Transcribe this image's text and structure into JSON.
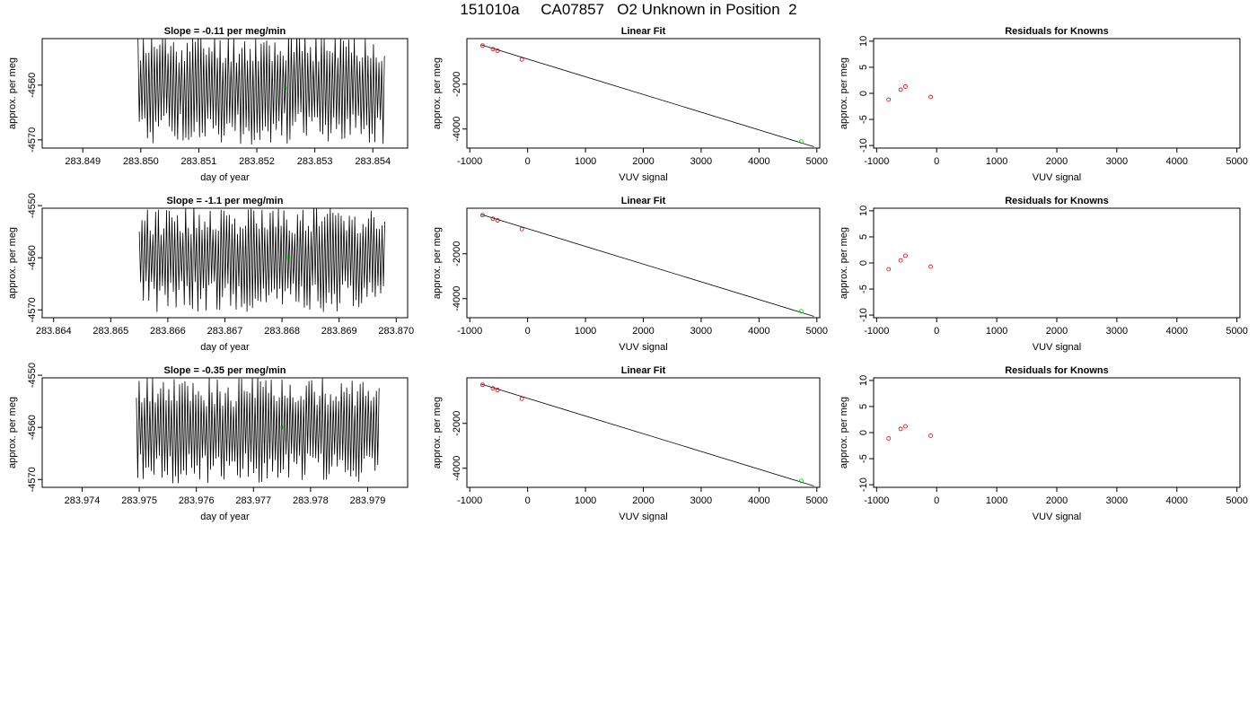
{
  "page_title": "151010a     CA07857   O2 Unknown in Position  2",
  "colors": {
    "axis": "#000000",
    "known": "#cc0000",
    "unknown": "#00cc00"
  },
  "chart_data": [
    {
      "type": "line",
      "title": "Slope =  -0.11  per meg/min",
      "xlabel": "day of year",
      "ylabel": "approx. per meg",
      "xlim": [
        283.8483,
        283.8546
      ],
      "ylim": [
        -4571.5,
        -4551.5
      ],
      "x_ticks": [
        283.849,
        283.85,
        283.851,
        283.852,
        283.853,
        283.854
      ],
      "x_tick_labels": [
        "283.849",
        "283.850",
        "283.851",
        "283.852",
        "283.853",
        "283.854"
      ],
      "y_ticks": [
        -4560,
        -4570
      ],
      "y_tick_labels": [
        "-4560",
        "-4570"
      ],
      "signal": {
        "x_start": 283.84995,
        "x_end": 283.8542,
        "cycles": 90,
        "y_center": -4560.5,
        "y_amplitude": 8,
        "seed": 11
      },
      "marker": {
        "x": 283.8525,
        "y": -4560.5
      }
    },
    {
      "type": "scatter",
      "title": "Linear Fit",
      "xlabel": "VUV signal",
      "ylabel": "approx. per meg",
      "xlim": [
        -1050,
        5050
      ],
      "ylim": [
        -4850,
        30
      ],
      "x_ticks": [
        -1000,
        0,
        1000,
        2000,
        3000,
        4000,
        5000
      ],
      "x_tick_labels": [
        "-1000",
        "0",
        "1000",
        "2000",
        "3000",
        "4000",
        "5000"
      ],
      "y_ticks": [
        -2000,
        -4000
      ],
      "y_tick_labels": [
        "-2000",
        "-4000"
      ],
      "known_points": [
        {
          "x": -780,
          "y": -280
        },
        {
          "x": -600,
          "y": -440
        },
        {
          "x": -520,
          "y": -510
        },
        {
          "x": -100,
          "y": -900
        }
      ],
      "unknown_point": {
        "x": 4730,
        "y": -4560
      },
      "fit_line": {
        "x": [
          -800,
          4950
        ],
        "y": [
          -250,
          -4790
        ]
      }
    },
    {
      "type": "scatter",
      "title": "Residuals for Knowns",
      "xlabel": "VUV signal",
      "ylabel": "approx. per meg",
      "xlim": [
        -1050,
        5050
      ],
      "ylim": [
        -10.5,
        10.5
      ],
      "x_ticks": [
        -1000,
        0,
        1000,
        2000,
        3000,
        4000,
        5000
      ],
      "x_tick_labels": [
        "-1000",
        "0",
        "1000",
        "2000",
        "3000",
        "4000",
        "5000"
      ],
      "y_ticks": [
        10,
        5,
        0,
        -5,
        -10
      ],
      "y_tick_labels": [
        "10",
        "5",
        "0",
        "-5",
        "-10"
      ],
      "points": [
        {
          "x": -800,
          "y": -1.2
        },
        {
          "x": -600,
          "y": 0.7
        },
        {
          "x": -520,
          "y": 1.3
        },
        {
          "x": -100,
          "y": -0.7
        }
      ]
    },
    {
      "type": "line",
      "title": "Slope =  -1.1  per meg/min",
      "xlabel": "day of year",
      "ylabel": "approx. per meg",
      "xlim": [
        283.8638,
        283.8702
      ],
      "ylim": [
        -4571.5,
        -4550.5
      ],
      "x_ticks": [
        283.864,
        283.865,
        283.866,
        283.867,
        283.868,
        283.869,
        283.87
      ],
      "x_tick_labels": [
        "283.864",
        "283.865",
        "283.866",
        "283.867",
        "283.868",
        "283.869",
        "283.870"
      ],
      "y_ticks": [
        -4550,
        -4560,
        -4570
      ],
      "y_tick_labels": [
        "-4550",
        "-4560",
        "-4570"
      ],
      "signal": {
        "x_start": 283.8655,
        "x_end": 283.8698,
        "cycles": 90,
        "y_center": -4560,
        "y_amplitude": 8,
        "seed": 22
      },
      "marker": {
        "x": 283.8681,
        "y": -4560
      }
    },
    {
      "type": "scatter",
      "title": "Linear Fit",
      "xlabel": "VUV signal",
      "ylabel": "approx. per meg",
      "xlim": [
        -1050,
        5050
      ],
      "ylim": [
        -4850,
        30
      ],
      "x_ticks": [
        -1000,
        0,
        1000,
        2000,
        3000,
        4000,
        5000
      ],
      "x_tick_labels": [
        "-1000",
        "0",
        "1000",
        "2000",
        "3000",
        "4000",
        "5000"
      ],
      "y_ticks": [
        -2000,
        -4000
      ],
      "y_tick_labels": [
        "-2000",
        "-4000"
      ],
      "known_points": [
        {
          "x": -780,
          "y": -280
        },
        {
          "x": -600,
          "y": -440
        },
        {
          "x": -520,
          "y": -510
        },
        {
          "x": -100,
          "y": -900
        }
      ],
      "unknown_point": {
        "x": 4730,
        "y": -4560
      },
      "fit_line": {
        "x": [
          -800,
          4950
        ],
        "y": [
          -250,
          -4790
        ]
      }
    },
    {
      "type": "scatter",
      "title": "Residuals for Knowns",
      "xlabel": "VUV signal",
      "ylabel": "approx. per meg",
      "xlim": [
        -1050,
        5050
      ],
      "ylim": [
        -10.5,
        10.5
      ],
      "x_ticks": [
        -1000,
        0,
        1000,
        2000,
        3000,
        4000,
        5000
      ],
      "x_tick_labels": [
        "-1000",
        "0",
        "1000",
        "2000",
        "3000",
        "4000",
        "5000"
      ],
      "y_ticks": [
        10,
        5,
        0,
        -5,
        -10
      ],
      "y_tick_labels": [
        "10",
        "5",
        "0",
        "-5",
        "-10"
      ],
      "points": [
        {
          "x": -800,
          "y": -1.2
        },
        {
          "x": -600,
          "y": 0.5
        },
        {
          "x": -520,
          "y": 1.4
        },
        {
          "x": -100,
          "y": -0.7
        }
      ]
    },
    {
      "type": "line",
      "title": "Slope =  -0.35  per meg/min",
      "xlabel": "day of year",
      "ylabel": "approx. per meg",
      "xlim": [
        283.9733,
        283.9797
      ],
      "ylim": [
        -4571.5,
        -4550.5
      ],
      "x_ticks": [
        283.974,
        283.975,
        283.976,
        283.977,
        283.978,
        283.979
      ],
      "x_tick_labels": [
        "283.974",
        "283.975",
        "283.976",
        "283.977",
        "283.978",
        "283.979"
      ],
      "y_ticks": [
        -4550,
        -4560,
        -4570
      ],
      "y_tick_labels": [
        "-4550",
        "-4560",
        "-4570"
      ],
      "signal": {
        "x_start": 283.97495,
        "x_end": 283.9792,
        "cycles": 90,
        "y_center": -4560.5,
        "y_amplitude": 8,
        "seed": 33
      },
      "marker": {
        "x": 283.9775,
        "y": -4560
      }
    },
    {
      "type": "scatter",
      "title": "Linear Fit",
      "xlabel": "VUV signal",
      "ylabel": "approx. per meg",
      "xlim": [
        -1050,
        5050
      ],
      "ylim": [
        -4850,
        30
      ],
      "x_ticks": [
        -1000,
        0,
        1000,
        2000,
        3000,
        4000,
        5000
      ],
      "x_tick_labels": [
        "-1000",
        "0",
        "1000",
        "2000",
        "3000",
        "4000",
        "5000"
      ],
      "y_ticks": [
        -2000,
        -4000
      ],
      "y_tick_labels": [
        "-2000",
        "-4000"
      ],
      "known_points": [
        {
          "x": -780,
          "y": -280
        },
        {
          "x": -600,
          "y": -440
        },
        {
          "x": -520,
          "y": -510
        },
        {
          "x": -100,
          "y": -900
        }
      ],
      "unknown_point": {
        "x": 4730,
        "y": -4560
      },
      "fit_line": {
        "x": [
          -800,
          4950
        ],
        "y": [
          -250,
          -4790
        ]
      }
    },
    {
      "type": "scatter",
      "title": "Residuals for Knowns",
      "xlabel": "VUV signal",
      "ylabel": "approx. per meg",
      "xlim": [
        -1050,
        5050
      ],
      "ylim": [
        -10.5,
        10.5
      ],
      "x_ticks": [
        -1000,
        0,
        1000,
        2000,
        3000,
        4000,
        5000
      ],
      "x_tick_labels": [
        "-1000",
        "0",
        "1000",
        "2000",
        "3000",
        "4000",
        "5000"
      ],
      "y_ticks": [
        10,
        5,
        0,
        -5,
        -10
      ],
      "y_tick_labels": [
        "10",
        "5",
        "0",
        "-5",
        "-10"
      ],
      "points": [
        {
          "x": -800,
          "y": -1.1
        },
        {
          "x": -600,
          "y": 0.7
        },
        {
          "x": -520,
          "y": 1.2
        },
        {
          "x": -100,
          "y": -0.6
        }
      ]
    }
  ]
}
